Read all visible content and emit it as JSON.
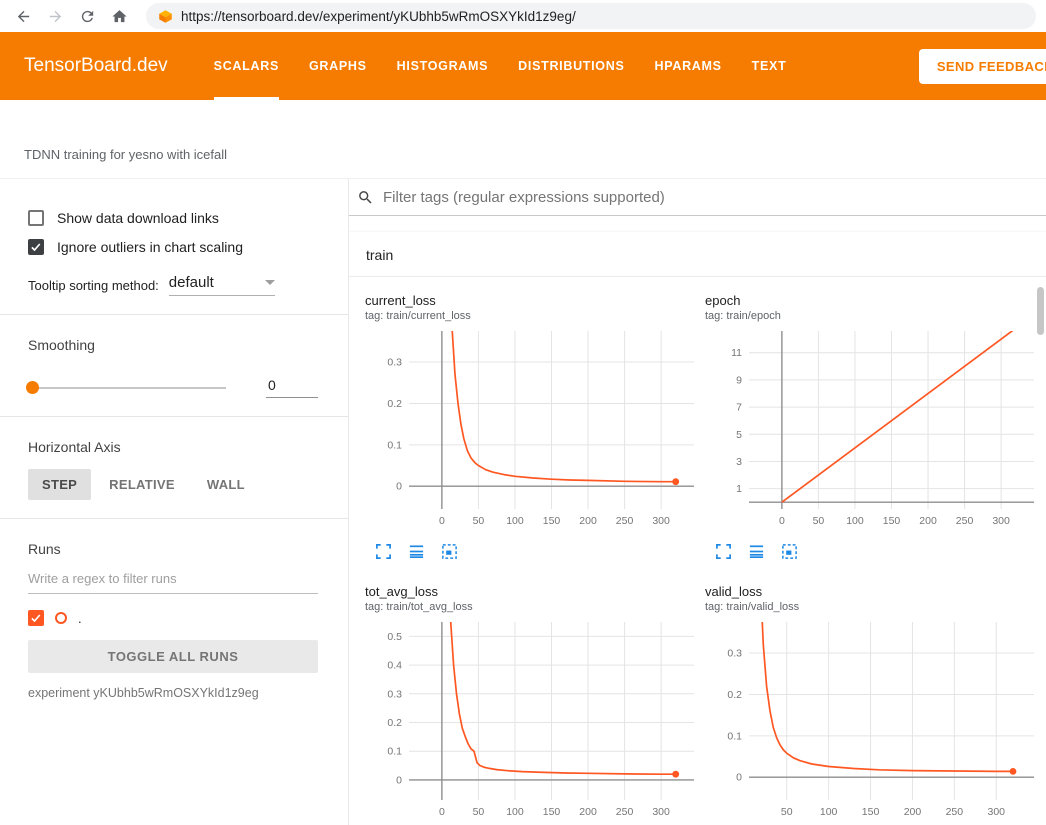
{
  "browser": {
    "url": "https://tensorboard.dev/experiment/yKUbhb5wRmOSXYkId1z9eg/"
  },
  "header": {
    "logo": "TensorBoard.dev",
    "tabs": [
      {
        "label": "SCALARS",
        "active": true
      },
      {
        "label": "GRAPHS",
        "active": false
      },
      {
        "label": "HISTOGRAMS",
        "active": false
      },
      {
        "label": "DISTRIBUTIONS",
        "active": false
      },
      {
        "label": "HPARAMS",
        "active": false
      },
      {
        "label": "TEXT",
        "active": false
      }
    ],
    "feedback_label": "SEND FEEDBACK"
  },
  "experiment": {
    "description": "TDNN training for yesno with icefall",
    "id_caption": "experiment yKUbhb5wRmOSXYkId1z9eg"
  },
  "sidebar": {
    "show_download_label": "Show data download links",
    "show_download_checked": false,
    "ignore_outliers_label": "Ignore outliers in chart scaling",
    "ignore_outliers_checked": true,
    "tooltip_sorting_label": "Tooltip sorting method:",
    "tooltip_sorting_value": "default",
    "smoothing_label": "Smoothing",
    "smoothing_value": "0",
    "horizontal_axis_label": "Horizontal Axis",
    "axis_options": [
      {
        "label": "STEP",
        "selected": true
      },
      {
        "label": "RELATIVE",
        "selected": false
      },
      {
        "label": "WALL",
        "selected": false
      }
    ],
    "runs_label": "Runs",
    "runs_filter_placeholder": "Write a regex to filter runs",
    "runs": [
      {
        "name": ".",
        "checked": true,
        "color": "#ff5722"
      }
    ],
    "toggle_all_label": "TOGGLE ALL RUNS"
  },
  "main": {
    "filter_placeholder": "Filter tags (regular expressions supported)",
    "group_label": "train"
  },
  "chart_data": [
    {
      "type": "line",
      "title": "current_loss",
      "tag": "tag: train/current_loss",
      "x_ticks": [
        0,
        50,
        100,
        150,
        200,
        250,
        300
      ],
      "y_ticks": [
        0,
        0.1,
        0.2,
        0.3
      ],
      "xlim": [
        -45,
        345
      ],
      "ylim": [
        -0.055,
        0.375
      ],
      "color": "#ff5722",
      "endpoint": true,
      "points": [
        [
          2,
          1.0
        ],
        [
          8,
          0.6
        ],
        [
          14,
          0.38
        ],
        [
          18,
          0.27
        ],
        [
          22,
          0.2
        ],
        [
          26,
          0.15
        ],
        [
          30,
          0.115
        ],
        [
          35,
          0.085
        ],
        [
          40,
          0.068
        ],
        [
          45,
          0.057
        ],
        [
          50,
          0.05
        ],
        [
          60,
          0.04
        ],
        [
          70,
          0.034
        ],
        [
          85,
          0.028
        ],
        [
          100,
          0.024
        ],
        [
          125,
          0.02
        ],
        [
          150,
          0.017
        ],
        [
          175,
          0.015
        ],
        [
          200,
          0.014
        ],
        [
          250,
          0.012
        ],
        [
          300,
          0.011
        ],
        [
          320,
          0.011
        ]
      ]
    },
    {
      "type": "line",
      "title": "epoch",
      "tag": "tag: train/epoch",
      "x_ticks": [
        0,
        50,
        100,
        150,
        200,
        250,
        300
      ],
      "y_ticks": [
        1,
        3,
        5,
        7,
        9,
        11
      ],
      "xlim": [
        -45,
        345
      ],
      "ylim": [
        -0.5,
        12.6
      ],
      "color": "#ff5722",
      "endpoint": false,
      "points": [
        [
          0,
          0
        ],
        [
          320,
          12.8
        ]
      ]
    },
    {
      "type": "line",
      "title": "tot_avg_loss",
      "tag": "tag: train/tot_avg_loss",
      "x_ticks": [
        0,
        50,
        100,
        150,
        200,
        250,
        300
      ],
      "y_ticks": [
        0,
        0.1,
        0.2,
        0.3,
        0.4,
        0.5
      ],
      "xlim": [
        -45,
        345
      ],
      "ylim": [
        -0.07,
        0.55
      ],
      "color": "#ff5722",
      "endpoint": true,
      "points": [
        [
          3,
          1.2
        ],
        [
          8,
          0.8
        ],
        [
          12,
          0.55
        ],
        [
          16,
          0.4
        ],
        [
          20,
          0.3
        ],
        [
          24,
          0.23
        ],
        [
          28,
          0.18
        ],
        [
          32,
          0.15
        ],
        [
          36,
          0.125
        ],
        [
          40,
          0.108
        ],
        [
          44,
          0.1
        ],
        [
          46,
          0.08
        ],
        [
          48,
          0.06
        ],
        [
          52,
          0.05
        ],
        [
          58,
          0.044
        ],
        [
          65,
          0.04
        ],
        [
          75,
          0.036
        ],
        [
          90,
          0.032
        ],
        [
          110,
          0.029
        ],
        [
          140,
          0.026
        ],
        [
          170,
          0.024
        ],
        [
          200,
          0.023
        ],
        [
          250,
          0.021
        ],
        [
          300,
          0.02
        ],
        [
          320,
          0.02
        ]
      ]
    },
    {
      "type": "line",
      "title": "valid_loss",
      "tag": "tag: train/valid_loss",
      "x_ticks": [
        50,
        100,
        150,
        200,
        250,
        300
      ],
      "y_ticks": [
        0,
        0.1,
        0.2,
        0.3
      ],
      "xlim": [
        5,
        345
      ],
      "ylim": [
        -0.055,
        0.375
      ],
      "color": "#ff5722",
      "endpoint": true,
      "points": [
        [
          14,
          0.9
        ],
        [
          18,
          0.5
        ],
        [
          22,
          0.32
        ],
        [
          26,
          0.22
        ],
        [
          30,
          0.16
        ],
        [
          34,
          0.12
        ],
        [
          38,
          0.095
        ],
        [
          42,
          0.078
        ],
        [
          46,
          0.066
        ],
        [
          50,
          0.058
        ],
        [
          58,
          0.047
        ],
        [
          66,
          0.04
        ],
        [
          80,
          0.032
        ],
        [
          100,
          0.026
        ],
        [
          130,
          0.021
        ],
        [
          160,
          0.018
        ],
        [
          200,
          0.016
        ],
        [
          250,
          0.015
        ],
        [
          300,
          0.014
        ],
        [
          320,
          0.014
        ]
      ]
    }
  ],
  "colors": {
    "header_orange": "#f57c00",
    "series_orange": "#ff5722",
    "chart_icon_blue": "#1e88e5"
  }
}
